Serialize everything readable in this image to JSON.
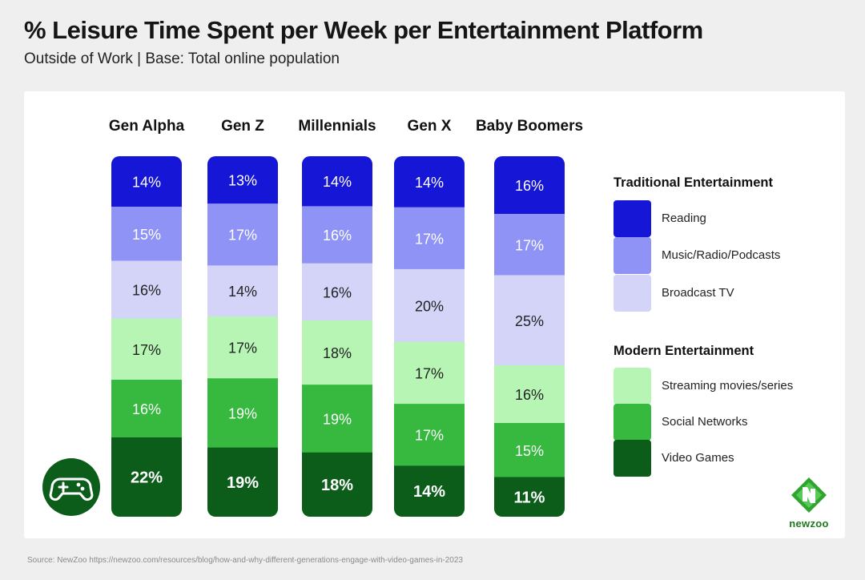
{
  "title": "% Leisure Time Spent per Week per Entertainment Platform",
  "subtitle": "Outside of Work |  Base: Total online population",
  "source": "Source: NewZoo https://newzoo.com/resources/blog/how-and-why-different-generations-engage-with-video-games-in-2023",
  "brand": "newzoo",
  "legend": {
    "traditional_heading": "Traditional Entertainment",
    "modern_heading": "Modern Entertainment",
    "items": [
      {
        "label": "Reading",
        "color": "#1616d6"
      },
      {
        "label": "Music/Radio/Podcasts",
        "color": "#8f93f5"
      },
      {
        "label": "Broadcast TV",
        "color": "#d3d4f8"
      },
      {
        "label": "Streaming movies/series",
        "color": "#b6f5b4"
      },
      {
        "label": "Social Networks",
        "color": "#37b940"
      },
      {
        "label": "Video Games",
        "color": "#0c5c1a"
      }
    ]
  },
  "icons": {
    "game": "gamepad-icon",
    "logo": "newzoo-logo-icon"
  },
  "chart_data": {
    "type": "bar",
    "stacked": true,
    "categories": [
      "Gen Alpha",
      "Gen Z",
      "Millennials",
      "Gen X",
      "Baby Boomers"
    ],
    "series": [
      {
        "name": "Reading",
        "values": [
          14,
          13,
          14,
          14,
          16
        ]
      },
      {
        "name": "Music/Radio/Podcasts",
        "values": [
          15,
          17,
          16,
          17,
          17
        ]
      },
      {
        "name": "Broadcast TV",
        "values": [
          16,
          14,
          16,
          20,
          25
        ]
      },
      {
        "name": "Streaming movies/series",
        "values": [
          17,
          17,
          18,
          17,
          16
        ]
      },
      {
        "name": "Social Networks",
        "values": [
          16,
          19,
          19,
          17,
          15
        ]
      },
      {
        "name": "Video Games",
        "values": [
          22,
          19,
          18,
          14,
          11
        ]
      }
    ],
    "value_suffix": "%",
    "label_colors": [
      "#ffffff",
      "#ffffff",
      "#222222",
      "#222222",
      "#ffffff",
      "#ffffff"
    ],
    "bold_series": "Video Games",
    "legend_position": "right",
    "grid": false
  }
}
